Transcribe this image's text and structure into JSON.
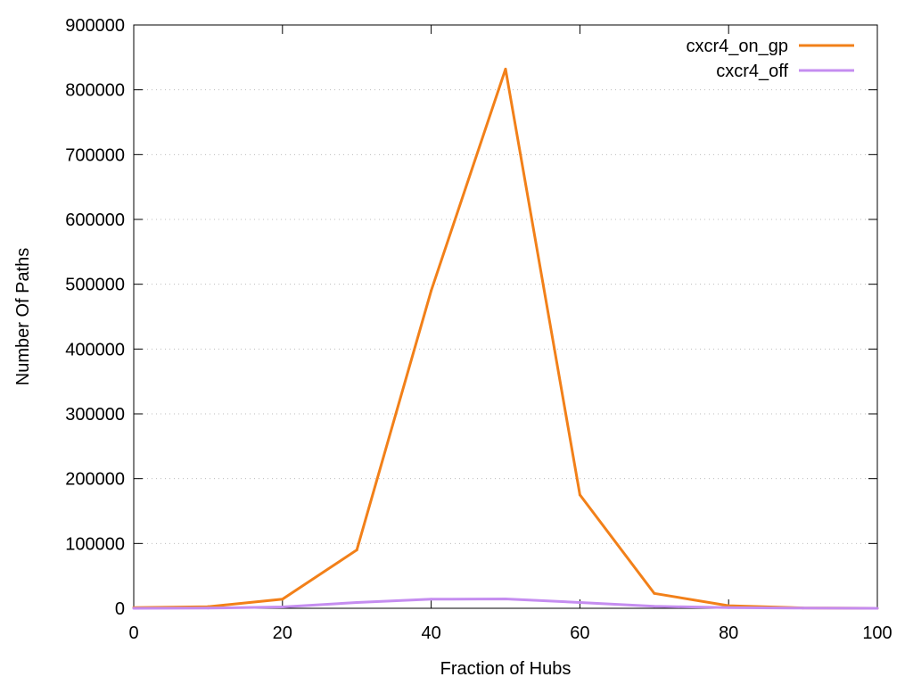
{
  "chart_data": {
    "type": "line",
    "title": "",
    "xlabel": "Fraction of Hubs",
    "ylabel": "Number Of Paths",
    "xlim": [
      0,
      100
    ],
    "ylim": [
      0,
      900000
    ],
    "xticks": [
      0,
      20,
      40,
      60,
      80,
      100
    ],
    "yticks": [
      0,
      100000,
      200000,
      300000,
      400000,
      500000,
      600000,
      700000,
      800000,
      900000
    ],
    "x": [
      0,
      10,
      20,
      30,
      40,
      50,
      60,
      70,
      80,
      90,
      100
    ],
    "series": [
      {
        "name": "cxcr4_on_gp",
        "color": "#f28019",
        "values": [
          1000,
          2500,
          14000,
          90000,
          490000,
          832000,
          175000,
          23000,
          4000,
          500,
          0
        ]
      },
      {
        "name": "cxcr4_off",
        "color": "#c58df0",
        "values": [
          0,
          300,
          2000,
          9000,
          14000,
          14500,
          9000,
          3000,
          1000,
          300,
          0
        ]
      }
    ],
    "grid": "y-dotted",
    "legend": "top-right"
  }
}
